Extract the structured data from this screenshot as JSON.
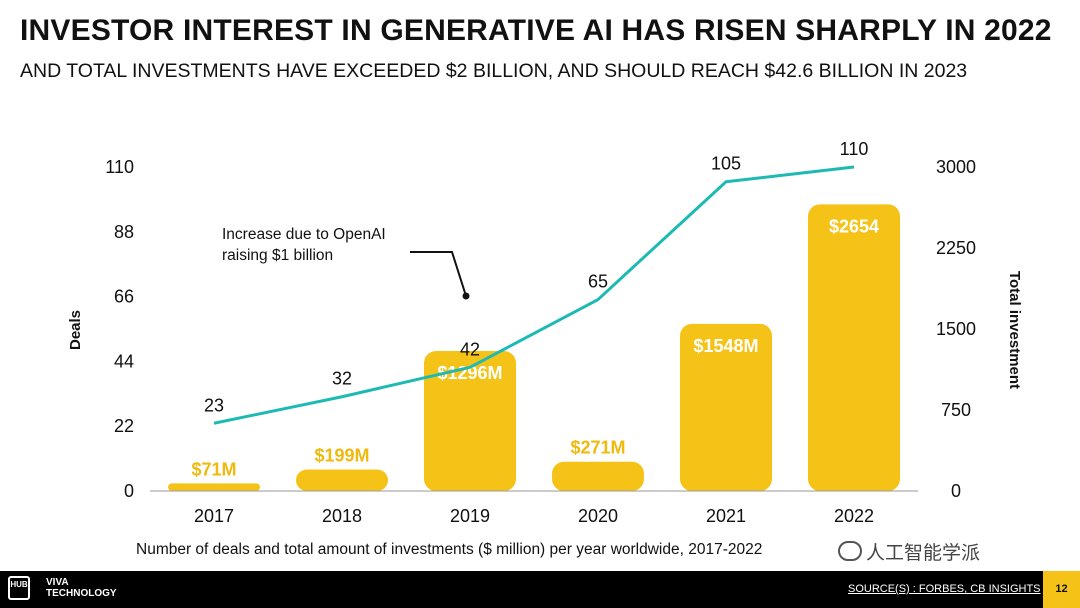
{
  "header": {
    "title": "INVESTOR INTEREST IN GENERATIVE AI HAS RISEN SHARPLY IN 2022",
    "subtitle": "AND TOTAL INVESTMENTS HAVE EXCEEDED $2 BILLION, AND SHOULD REACH $42.6 BILLION IN 2023"
  },
  "chart_data": {
    "type": "bar+line",
    "categories": [
      "2017",
      "2018",
      "2019",
      "2020",
      "2021",
      "2022"
    ],
    "series": [
      {
        "name": "Total investment",
        "kind": "bar",
        "axis": "right",
        "values": [
          71,
          199,
          1296,
          271,
          1548,
          2654
        ],
        "labels": [
          "$71M",
          "$199M",
          "$1296M",
          "$271M",
          "$1548M",
          "$2654"
        ]
      },
      {
        "name": "Deals",
        "kind": "line",
        "axis": "left",
        "values": [
          23,
          32,
          42,
          65,
          105,
          110
        ]
      }
    ],
    "left_axis": {
      "label": "Deals",
      "ticks": [
        0,
        22,
        44,
        66,
        88,
        110
      ],
      "range": [
        0,
        110
      ]
    },
    "right_axis": {
      "label": "Total investment",
      "ticks": [
        0,
        750,
        1500,
        2250,
        3000
      ],
      "range": [
        0,
        3000
      ]
    },
    "annotation": {
      "lines": [
        "Increase due to OpenAI",
        "raising $1 billion"
      ],
      "category": "2019"
    },
    "caption": "Number of deals and total amount of investments ($ million) per year worldwide, 2017-2022",
    "colors": {
      "bar": "#f5c318",
      "line": "#1dbab3",
      "bar_label": "#f0b90c"
    }
  },
  "footer": {
    "logo_hub": "HUB",
    "logo_viva_line1": "VIVA",
    "logo_viva_line2": "TECHNOLOGY",
    "source": "SOURCE(S) : FORBES, CB INSIGHTS",
    "page_number": "12"
  },
  "watermark": {
    "text": "人工智能学派"
  }
}
